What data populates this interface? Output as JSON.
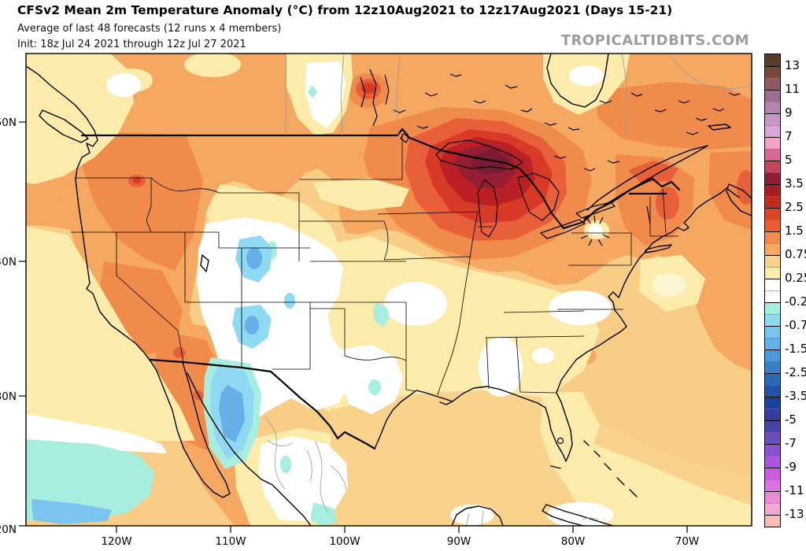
{
  "header": {
    "title": "CFSv2 Mean 2m Temperature Anomaly (°C) from 12z10Aug2021 to 12z17Aug2021 (Days 15-21)",
    "subtitle": "Average of last 48 forecasts (12 runs x 4 members)",
    "init_line": "Init: 18z Jul 24 2021 through 12z Jul 27 2021"
  },
  "watermark": "TROPICALTIDBITS.COM",
  "axes": {
    "lat": [
      "50N",
      "40N",
      "30N",
      "20N"
    ],
    "lon": [
      "120W",
      "110W",
      "100W",
      "90W",
      "80W",
      "70W"
    ]
  },
  "colorbar": {
    "labels": [
      "13",
      "11",
      "9",
      "7",
      "5",
      "3.5",
      "2.5",
      "1.5",
      "0.75",
      "0.25",
      "-0.25",
      "-0.75",
      "-1.5",
      "-2.5",
      "-3.5",
      "-5",
      "-7",
      "-9",
      "-11",
      "-13"
    ],
    "colors": [
      "#5A3C2B",
      "#77493B",
      "#8E5B64",
      "#9F6E8E",
      "#B484B0",
      "#C897C8",
      "#DBA5DB",
      "#F0A3C7",
      "#D76A90",
      "#C4455C",
      "#8E1D3A",
      "#A81C24",
      "#C52A1E",
      "#DC4528",
      "#E85E33",
      "#F28B4D",
      "#F5A862",
      "#F9D28B",
      "#FCECAC",
      "#FFFFFF",
      "#FFFFFF",
      "#A7EEE1",
      "#8FD9F3",
      "#7CC4F0",
      "#66AFE9",
      "#4F97DB",
      "#3A7FC8",
      "#2B69B8",
      "#2154A8",
      "#1A419B",
      "#333E9E",
      "#4A43A8",
      "#6A4FBC",
      "#8A52CE",
      "#AC55DE",
      "#C95BE3",
      "#DC74DF",
      "#E98BD9",
      "#F2A8D3",
      "#F6BDB9"
    ]
  },
  "palette": {
    "base": "#F8CD86",
    "orangeMid": "#F5A862",
    "orangeDeep": "#F08B4C",
    "orangeRed": "#E8603A",
    "red": "#D83A28",
    "darkRed": "#BB2024",
    "maroon": "#951E33",
    "wine": "#7A1B33",
    "tan": "#F9D28B",
    "paleYellow": "#FCECAC",
    "cream": "#FDF6D0",
    "white": "#FFFFFF",
    "aqua": "#A7EEE1",
    "ltBlue": "#8FD9F3",
    "blue2": "#7CC4F0",
    "blueCore": "#66AFE9"
  }
}
